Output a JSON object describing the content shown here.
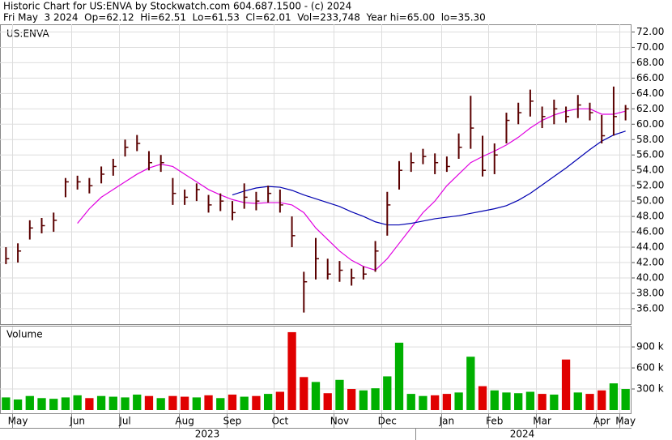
{
  "chart_data": {
    "type": "ohlc",
    "title": "Historic Chart for US:ENVA by Stockwatch.com 604.687.1500 - (c) 2024",
    "subtitle": "Fri May  3 2024  Op=62.12  Hi=62.51  Lo=61.53  Cl=62.01  Vol=233,748  Year hi=65.00  lo=35.30",
    "symbol": "US:ENVA",
    "color": "#5a0000",
    "grid": true,
    "categories": [
      null,
      "May",
      null,
      null,
      null,
      null,
      "Jun",
      null,
      null,
      null,
      "Jul",
      null,
      null,
      null,
      null,
      "Aug",
      null,
      null,
      null,
      "Sep",
      null,
      null,
      null,
      "Oct",
      null,
      null,
      null,
      null,
      "Nov",
      null,
      null,
      null,
      "Dec",
      null,
      null,
      null,
      null,
      "Jan",
      null,
      null,
      null,
      "Feb",
      null,
      null,
      null,
      "Mar",
      null,
      null,
      null,
      null,
      "Apr",
      null,
      "May"
    ],
    "years": [
      "2023",
      "2024"
    ],
    "high": [
      44.0,
      44.5,
      47.5,
      47.8,
      48.5,
      53.0,
      53.3,
      53.0,
      54.5,
      55.5,
      58.0,
      58.6,
      56.5,
      56.0,
      53.0,
      51.5,
      52.3,
      50.8,
      51.0,
      50.0,
      52.3,
      51.2,
      52.0,
      51.5,
      48.0,
      40.8,
      45.2,
      42.5,
      42.2,
      41.2,
      41.5,
      44.8,
      51.2,
      55.2,
      56.3,
      56.8,
      56.2,
      55.8,
      58.8,
      63.7,
      58.5,
      57.5,
      61.5,
      62.8,
      64.5,
      62.3,
      63.2,
      62.3,
      63.8,
      62.8,
      61.2,
      64.9,
      62.5
    ],
    "low": [
      41.8,
      42.0,
      45.0,
      45.8,
      46.0,
      50.5,
      51.5,
      51.0,
      52.3,
      53.3,
      55.8,
      56.5,
      54.0,
      53.8,
      49.5,
      49.5,
      50.0,
      48.5,
      48.7,
      47.5,
      49.0,
      48.8,
      49.8,
      48.5,
      44.0,
      35.5,
      39.8,
      39.8,
      39.5,
      39.0,
      39.8,
      40.8,
      45.5,
      51.5,
      53.8,
      54.8,
      53.5,
      53.8,
      55.5,
      56.8,
      53.2,
      53.5,
      57.5,
      60.0,
      61.0,
      59.5,
      60.0,
      60.2,
      60.8,
      60.5,
      57.5,
      58.5,
      60.5
    ],
    "close": [
      42.5,
      43.5,
      46.5,
      46.8,
      47.5,
      52.5,
      52.5,
      52.0,
      53.5,
      54.5,
      57.0,
      57.5,
      55.0,
      55.0,
      51.0,
      50.5,
      51.5,
      49.5,
      50.0,
      48.5,
      50.5,
      50.0,
      51.0,
      49.5,
      45.5,
      39.5,
      42.5,
      40.5,
      41.0,
      40.0,
      40.5,
      43.5,
      49.5,
      54.0,
      55.0,
      55.8,
      55.0,
      54.5,
      57.0,
      59.5,
      54.0,
      56.0,
      60.5,
      61.5,
      63.0,
      61.0,
      62.0,
      61.0,
      62.5,
      61.5,
      58.5,
      61.0,
      62.0
    ],
    "series": [
      {
        "color": "#e000e0",
        "values": [
          null,
          null,
          null,
          null,
          null,
          null,
          47.1,
          49,
          50.5,
          51.5,
          52.5,
          53.5,
          54.3,
          54.8,
          54.5,
          53.5,
          52.5,
          51.5,
          50.8,
          50.2,
          49.8,
          49.7,
          49.8,
          49.8,
          49.5,
          48.5,
          46.5,
          45,
          43.5,
          42.3,
          41.5,
          41,
          42.5,
          44.5,
          46.5,
          48.5,
          50,
          52,
          53.5,
          55,
          55.8,
          56.5,
          57.3,
          58.3,
          59.5,
          60.5,
          61.2,
          61.7,
          62,
          62,
          61.3,
          61.3,
          61.7
        ]
      },
      {
        "color": "#0000b0",
        "values": [
          null,
          null,
          null,
          null,
          null,
          null,
          null,
          null,
          null,
          null,
          null,
          null,
          null,
          null,
          null,
          null,
          null,
          null,
          null,
          50.8,
          51.3,
          51.7,
          51.9,
          51.8,
          51.4,
          50.8,
          50.3,
          49.8,
          49.3,
          48.6,
          48.0,
          47.3,
          46.9,
          46.9,
          47.1,
          47.4,
          47.7,
          47.9,
          48.1,
          48.4,
          48.7,
          49.0,
          49.4,
          50.1,
          51.0,
          52.1,
          53.2,
          54.3,
          55.5,
          56.7,
          57.8,
          58.6,
          59.1
        ]
      }
    ],
    "ylim": [
      34.2,
      73
    ],
    "yticks": [
      {
        "value": 36,
        "label": "36.00"
      },
      {
        "value": 38,
        "label": "38.00"
      },
      {
        "value": 40,
        "label": "40.00"
      },
      {
        "value": 42,
        "label": "42.00"
      },
      {
        "value": 44,
        "label": "44.00"
      },
      {
        "value": 46,
        "label": "46.00"
      },
      {
        "value": 48,
        "label": "48.00"
      },
      {
        "value": 50,
        "label": "50.00"
      },
      {
        "value": 52,
        "label": "52.00"
      },
      {
        "value": 54,
        "label": "54.00"
      },
      {
        "value": 56,
        "label": "56.00"
      },
      {
        "value": 58,
        "label": "58.00"
      },
      {
        "value": 60,
        "label": "60.00"
      },
      {
        "value": 62,
        "label": "62.00"
      },
      {
        "value": 64,
        "label": "64.00"
      },
      {
        "value": 66,
        "label": "66.00"
      },
      {
        "value": 68,
        "label": "68.00"
      },
      {
        "value": 70,
        "label": "70.00"
      },
      {
        "value": 72,
        "label": "72.00"
      }
    ],
    "volume": {
      "label": "Volume",
      "up_color": "#00b000",
      "down_color": "#e00000",
      "values": [
        180000,
        150000,
        200000,
        170000,
        160000,
        180000,
        210000,
        170000,
        200000,
        190000,
        180000,
        220000,
        200000,
        170000,
        200000,
        190000,
        180000,
        210000,
        170000,
        220000,
        190000,
        200000,
        230000,
        260000,
        1110000,
        470000,
        400000,
        240000,
        430000,
        300000,
        280000,
        310000,
        480000,
        960000,
        230000,
        200000,
        210000,
        230000,
        250000,
        760000,
        340000,
        280000,
        250000,
        240000,
        260000,
        230000,
        220000,
        720000,
        250000,
        230000,
        280000,
        380000,
        300000
      ],
      "ylim": [
        0,
        1190000
      ],
      "yticks": [
        {
          "value": 300000,
          "label": "300 k"
        },
        {
          "value": 600000,
          "label": "600 k"
        },
        {
          "value": 900000,
          "label": "900 k"
        }
      ]
    }
  }
}
